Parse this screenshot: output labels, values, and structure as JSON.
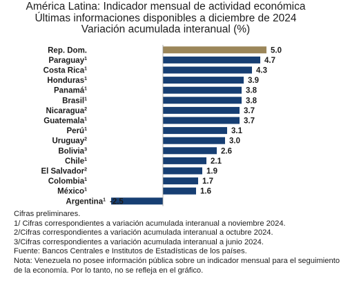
{
  "colors": {
    "highlight": "#9b8659",
    "bar": "#173f73"
  },
  "chart_data": {
    "type": "bar",
    "orientation": "horizontal",
    "title": "América Latina: Indicador mensual de actividad económica",
    "subtitle": "Últimas informaciones disponibles a diciembre de 2024",
    "subtitle2": "Variación acumulada interanual (%)",
    "categories": [
      {
        "name": "Rep. Dom.",
        "sup": "",
        "value": 5.0,
        "label": "5.0",
        "highlight": true
      },
      {
        "name": "Paraguay",
        "sup": "1",
        "value": 4.7,
        "label": "4.7"
      },
      {
        "name": "Costa Rica",
        "sup": "1",
        "value": 4.3,
        "label": "4.3"
      },
      {
        "name": "Honduras",
        "sup": "1",
        "value": 3.9,
        "label": "3.9"
      },
      {
        "name": "Panamá",
        "sup": "1",
        "value": 3.8,
        "label": "3.8"
      },
      {
        "name": "Brasil",
        "sup": "1",
        "value": 3.8,
        "label": "3.8"
      },
      {
        "name": "Nicaragua",
        "sup": "2",
        "value": 3.7,
        "label": "3.7"
      },
      {
        "name": "Guatemala",
        "sup": "1",
        "value": 3.7,
        "label": "3.7"
      },
      {
        "name": "Perú",
        "sup": "1",
        "value": 3.1,
        "label": "3.1"
      },
      {
        "name": "Uruguay",
        "sup": "2",
        "value": 3.0,
        "label": "3.0"
      },
      {
        "name": "Bolivia",
        "sup": "3",
        "value": 2.6,
        "label": "2.6"
      },
      {
        "name": "Chile",
        "sup": "1",
        "value": 2.1,
        "label": "2.1"
      },
      {
        "name": "El Salvador",
        "sup": "2",
        "value": 1.9,
        "label": "1.9"
      },
      {
        "name": "Colombia",
        "sup": "1",
        "value": 1.7,
        "label": "1.7"
      },
      {
        "name": "México",
        "sup": "1",
        "value": 1.6,
        "label": "1.6"
      },
      {
        "name": "Argentina",
        "sup": "1",
        "value": -2.5,
        "label": "-2.5"
      }
    ],
    "xlim": [
      -2.5,
      5.0
    ],
    "grid": false,
    "legend": "none"
  },
  "footnotes": {
    "preliminary": "Cifras preliminares.",
    "note1": "1/ Cifras correspondientes a variación acumulada interanual a noviembre 2024.",
    "note2": "2/Cifras correspondientes a variación acumulada interanual a octubre 2024.",
    "note3": "3/Cifras correspondientes a variación acumulada interanual a junio 2024.",
    "source": "Fuente: Bancos Centrales e Institutos de Estadísticas de los países.",
    "note_venezuela": "Nota: Venezuela no posee información pública sobre un indicador mensual para el seguimiento de la economía. Por lo tanto, no se refleja en el gráfico."
  }
}
